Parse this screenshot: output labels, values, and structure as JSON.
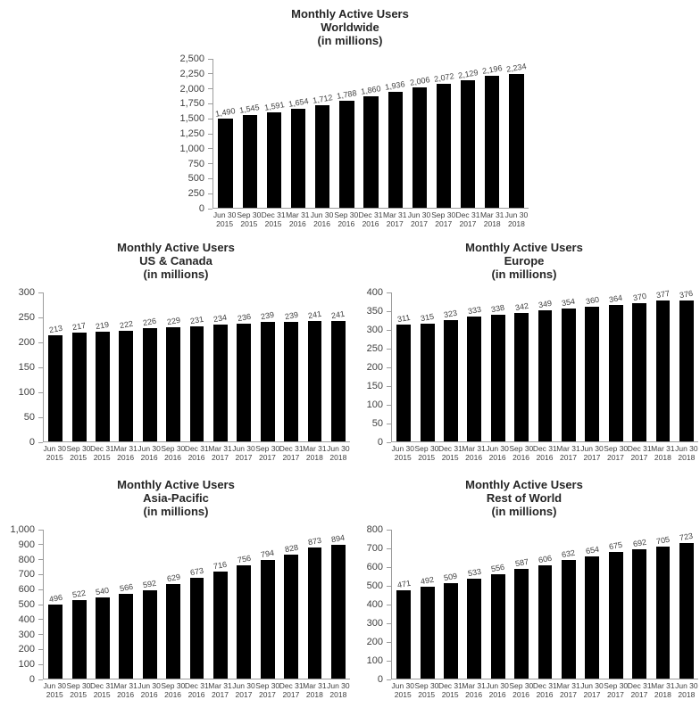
{
  "colors": {
    "bar": "#000000",
    "title_text": "#262626",
    "axis_line": "#9c9c9c",
    "label_text": "#3f3f3f",
    "background": "#ffffff"
  },
  "chart_data": [
    {
      "type": "bar",
      "id": "worldwide",
      "title": "Monthly Active Users Worldwide (in millions)",
      "title_lines": [
        "Monthly Active Users",
        "Worldwide",
        "(in millions)"
      ],
      "xlabel": "",
      "ylabel": "",
      "ylim": [
        0,
        2500
      ],
      "ytick_step": 250,
      "ytick_labels": [
        "2,500",
        "2,250",
        "2,000",
        "1,750",
        "1,500",
        "1,250",
        "1,000",
        "750",
        "500",
        "250",
        "0"
      ],
      "grid": false,
      "legend": false,
      "bar_color": "#000000",
      "categories": [
        "Jun 30 2015",
        "Sep 30 2015",
        "Dec 31 2015",
        "Mar 31 2016",
        "Jun 30 2016",
        "Sep 30 2016",
        "Dec 31 2016",
        "Mar 31 2017",
        "Jun 30 2017",
        "Sep 30 2017",
        "Dec 31 2017",
        "Mar 31 2018",
        "Jun 30 2018"
      ],
      "values": [
        1490,
        1545,
        1591,
        1654,
        1712,
        1788,
        1860,
        1936,
        2006,
        2072,
        2129,
        2196,
        2234
      ],
      "value_labels": [
        "1,490",
        "1,545",
        "1,591",
        "1,654",
        "1,712",
        "1,788",
        "1,860",
        "1,936",
        "2,006",
        "2,072",
        "2,129",
        "2,196",
        "2,234"
      ]
    },
    {
      "type": "bar",
      "id": "us-canada",
      "title": "Monthly Active Users US & Canada (in millions)",
      "title_lines": [
        "Monthly Active Users",
        "US & Canada",
        "(in millions)"
      ],
      "xlabel": "",
      "ylabel": "",
      "ylim": [
        0,
        300
      ],
      "ytick_step": 50,
      "ytick_labels": [
        "300",
        "250",
        "200",
        "150",
        "100",
        "50",
        "0"
      ],
      "grid": false,
      "legend": false,
      "bar_color": "#000000",
      "categories": [
        "Jun 30 2015",
        "Sep 30 2015",
        "Dec 31 2015",
        "Mar 31 2016",
        "Jun 30 2016",
        "Sep 30 2016",
        "Dec 31 2016",
        "Mar 31 2017",
        "Jun 30 2017",
        "Sep 30 2017",
        "Dec 31 2017",
        "Mar 31 2018",
        "Jun 30 2018"
      ],
      "values": [
        213,
        217,
        219,
        222,
        226,
        229,
        231,
        234,
        236,
        239,
        239,
        241,
        241
      ],
      "value_labels": [
        "213",
        "217",
        "219",
        "222",
        "226",
        "229",
        "231",
        "234",
        "236",
        "239",
        "239",
        "241",
        "241"
      ]
    },
    {
      "type": "bar",
      "id": "europe",
      "title": "Monthly Active Users Europe (in millions)",
      "title_lines": [
        "Monthly Active Users",
        "Europe",
        "(in millions)"
      ],
      "xlabel": "",
      "ylabel": "",
      "ylim": [
        0,
        400
      ],
      "ytick_step": 50,
      "ytick_labels": [
        "400",
        "350",
        "300",
        "250",
        "200",
        "150",
        "100",
        "50",
        "0"
      ],
      "grid": false,
      "legend": false,
      "bar_color": "#000000",
      "categories": [
        "Jun 30 2015",
        "Sep 30 2015",
        "Dec 31 2015",
        "Mar 31 2016",
        "Jun 30 2016",
        "Sep 30 2016",
        "Dec 31 2016",
        "Mar 31 2017",
        "Jun 30 2017",
        "Sep 30 2017",
        "Dec 31 2017",
        "Mar 31 2018",
        "Jun 30 2018"
      ],
      "values": [
        311,
        315,
        323,
        333,
        338,
        342,
        349,
        354,
        360,
        364,
        370,
        377,
        376
      ],
      "value_labels": [
        "311",
        "315",
        "323",
        "333",
        "338",
        "342",
        "349",
        "354",
        "360",
        "364",
        "370",
        "377",
        "376"
      ]
    },
    {
      "type": "bar",
      "id": "asia-pacific",
      "title": "Monthly Active Users Asia-Pacific (in millions)",
      "title_lines": [
        "Monthly Active Users",
        "Asia-Pacific",
        "(in millions)"
      ],
      "xlabel": "",
      "ylabel": "",
      "ylim": [
        0,
        1000
      ],
      "ytick_step": 100,
      "ytick_labels": [
        "1,000",
        "900",
        "800",
        "700",
        "600",
        "500",
        "400",
        "300",
        "200",
        "100",
        "0"
      ],
      "grid": false,
      "legend": false,
      "bar_color": "#000000",
      "categories": [
        "Jun 30 2015",
        "Sep 30 2015",
        "Dec 31 2015",
        "Mar 31 2016",
        "Jun 30 2016",
        "Sep 30 2016",
        "Dec 31 2016",
        "Mar 31 2017",
        "Jun 30 2017",
        "Sep 30 2017",
        "Dec 31 2017",
        "Mar 31 2018",
        "Jun 30 2018"
      ],
      "values": [
        496,
        522,
        540,
        566,
        592,
        629,
        673,
        716,
        756,
        794,
        828,
        873,
        894
      ],
      "value_labels": [
        "496",
        "522",
        "540",
        "566",
        "592",
        "629",
        "673",
        "716",
        "756",
        "794",
        "828",
        "873",
        "894"
      ]
    },
    {
      "type": "bar",
      "id": "rest-of-world",
      "title": "Monthly Active Users Rest of World (in millions)",
      "title_lines": [
        "Monthly Active Users",
        "Rest of World",
        "(in millions)"
      ],
      "xlabel": "",
      "ylabel": "",
      "ylim": [
        0,
        800
      ],
      "ytick_step": 100,
      "ytick_labels": [
        "800",
        "700",
        "600",
        "500",
        "400",
        "300",
        "200",
        "100",
        "0"
      ],
      "grid": false,
      "legend": false,
      "bar_color": "#000000",
      "categories": [
        "Jun 30 2015",
        "Sep 30 2015",
        "Dec 31 2015",
        "Mar 31 2016",
        "Jun 30 2016",
        "Sep 30 2016",
        "Dec 31 2016",
        "Mar 31 2017",
        "Jun 30 2017",
        "Sep 30 2017",
        "Dec 31 2017",
        "Mar 31 2018",
        "Jun 30 2018"
      ],
      "values": [
        471,
        492,
        509,
        533,
        556,
        587,
        606,
        632,
        654,
        675,
        692,
        705,
        723
      ],
      "value_labels": [
        "471",
        "492",
        "509",
        "533",
        "556",
        "587",
        "606",
        "632",
        "654",
        "675",
        "692",
        "705",
        "723"
      ]
    }
  ]
}
